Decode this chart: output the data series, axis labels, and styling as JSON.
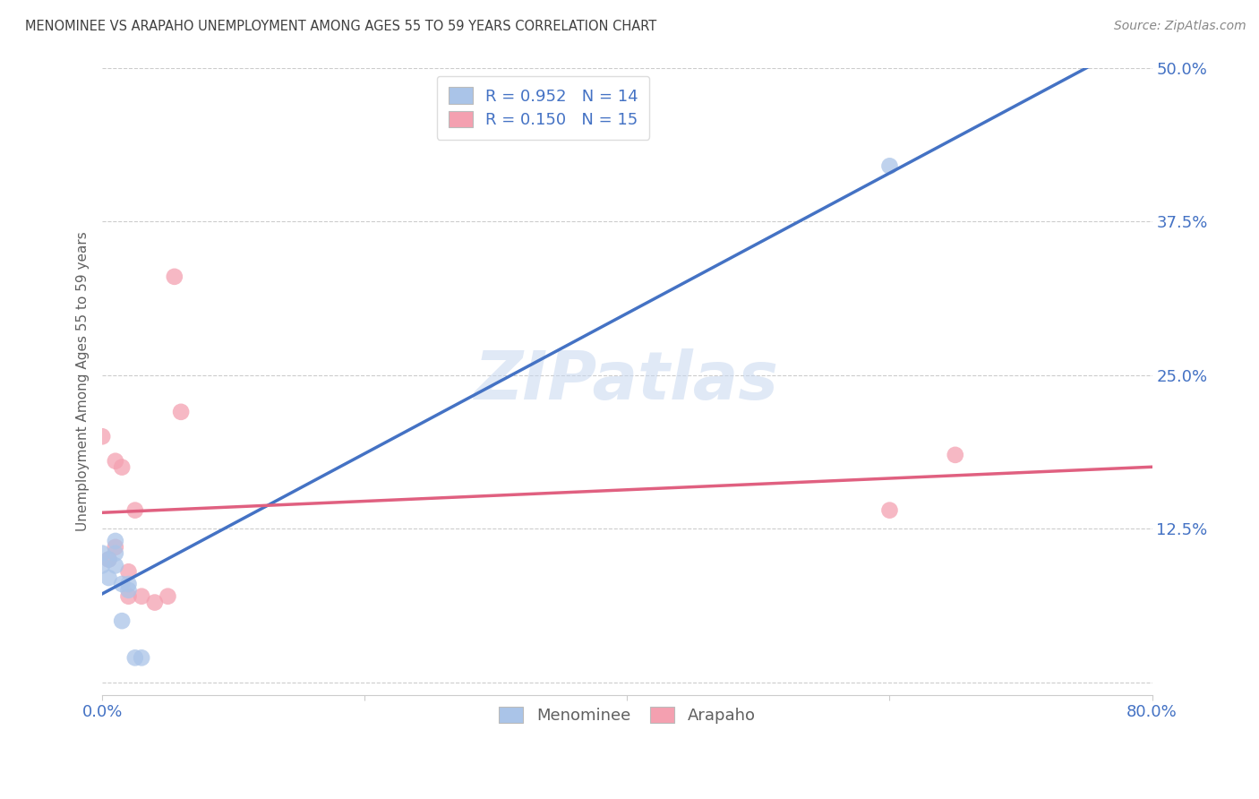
{
  "title": "MENOMINEE VS ARAPAHO UNEMPLOYMENT AMONG AGES 55 TO 59 YEARS CORRELATION CHART",
  "source": "Source: ZipAtlas.com",
  "ylabel_label": "Unemployment Among Ages 55 to 59 years",
  "xlim": [
    0.0,
    0.8
  ],
  "ylim": [
    -0.01,
    0.5
  ],
  "xticks": [
    0.0,
    0.2,
    0.4,
    0.6,
    0.8
  ],
  "yticks": [
    0.0,
    0.125,
    0.25,
    0.375,
    0.5
  ],
  "xticklabels": [
    "0.0%",
    "",
    "",
    "",
    "80.0%"
  ],
  "yticklabels": [
    "",
    "12.5%",
    "25.0%",
    "37.5%",
    "50.0%"
  ],
  "menominee_x": [
    0.0,
    0.0,
    0.005,
    0.005,
    0.01,
    0.01,
    0.01,
    0.015,
    0.015,
    0.02,
    0.02,
    0.025,
    0.03,
    0.6
  ],
  "menominee_y": [
    0.095,
    0.105,
    0.085,
    0.1,
    0.095,
    0.105,
    0.115,
    0.05,
    0.08,
    0.075,
    0.08,
    0.02,
    0.02,
    0.42
  ],
  "arapaho_x": [
    0.0,
    0.005,
    0.01,
    0.01,
    0.015,
    0.02,
    0.02,
    0.025,
    0.03,
    0.04,
    0.05,
    0.055,
    0.06,
    0.6,
    0.65
  ],
  "arapaho_y": [
    0.2,
    0.1,
    0.11,
    0.18,
    0.175,
    0.07,
    0.09,
    0.14,
    0.07,
    0.065,
    0.07,
    0.33,
    0.22,
    0.14,
    0.185
  ],
  "menominee_color": "#aac4e8",
  "arapaho_color": "#f4a0b0",
  "menominee_line_color": "#4472c4",
  "arapaho_line_color": "#e06080",
  "menominee_R": 0.952,
  "menominee_N": 14,
  "arapaho_R": 0.15,
  "arapaho_N": 15,
  "background_color": "#ffffff",
  "grid_color": "#cccccc",
  "watermark": "ZIPatlas",
  "title_color": "#404040",
  "axis_label_color": "#606060",
  "tick_color": "#4472c4",
  "scatter_size": 180,
  "scatter_alpha": 0.75
}
